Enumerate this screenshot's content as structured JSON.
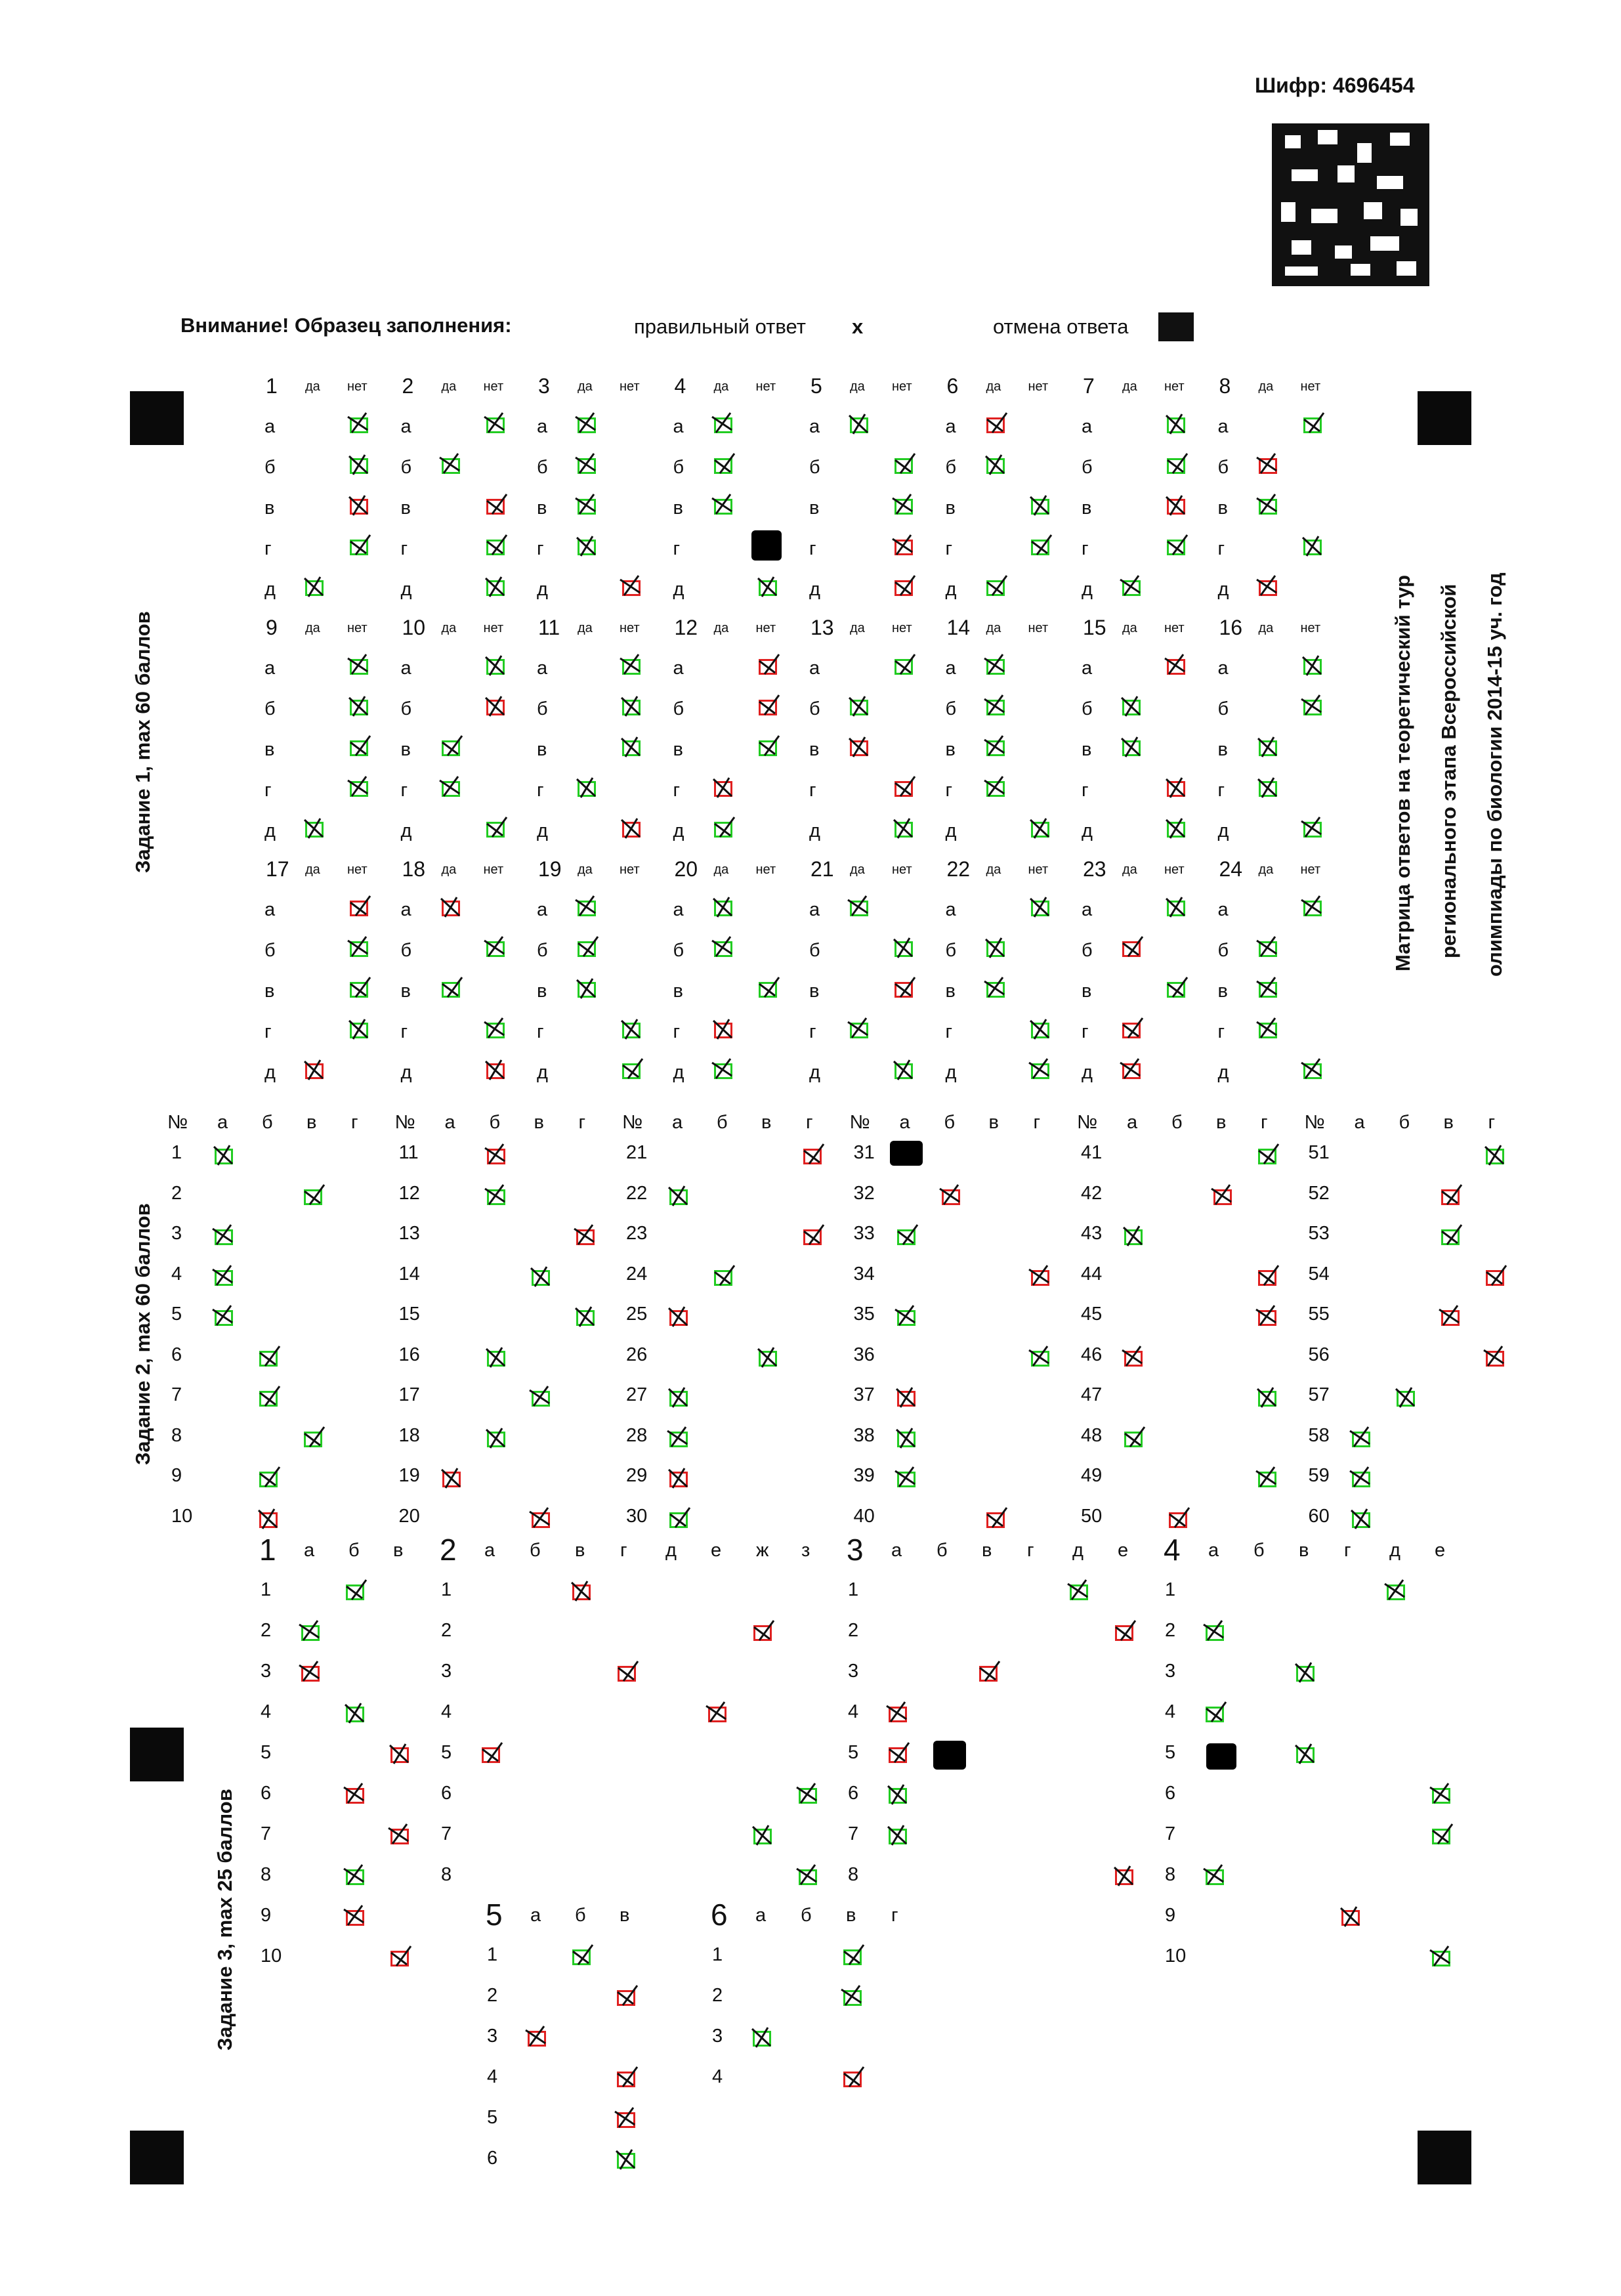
{
  "header": {
    "code": "Шифр: 4696454",
    "legend_title": "Внимание! Образец заполнения:",
    "legend_correct": "правильный ответ",
    "legend_correct_mark": "x",
    "legend_cancel": "отмена ответа"
  },
  "side_title": {
    "line1": "Матрица ответов на теоретический тур",
    "line2": "регионального этапа Всероссийской",
    "line3": "олимпиады по биологии 2014-15 уч. год"
  },
  "task1": {
    "label": "Задание 1, max 60 баллов",
    "yes": "да",
    "no": "нет",
    "letters": [
      "а",
      "б",
      "в",
      "г",
      "д"
    ],
    "questions": [
      "1",
      "2",
      "3",
      "4",
      "5",
      "6",
      "7",
      "8",
      "9",
      "10",
      "11",
      "12",
      "13",
      "14",
      "15",
      "16",
      "17",
      "18",
      "19",
      "20",
      "21",
      "22",
      "23",
      "24"
    ]
  },
  "task2": {
    "label": "Задание 2, max 60 баллов",
    "num_header": "№",
    "letters": [
      "а",
      "б",
      "в",
      "г"
    ],
    "numbers": [
      "1",
      "2",
      "3",
      "4",
      "5",
      "6",
      "7",
      "8",
      "9",
      "10",
      "11",
      "12",
      "13",
      "14",
      "15",
      "16",
      "17",
      "18",
      "19",
      "20",
      "21",
      "22",
      "23",
      "24",
      "25",
      "26",
      "27",
      "28",
      "29",
      "30",
      "31",
      "32",
      "33",
      "34",
      "35",
      "36",
      "37",
      "38",
      "39",
      "40",
      "41",
      "42",
      "43",
      "44",
      "45",
      "46",
      "47",
      "48",
      "49",
      "50",
      "51",
      "52",
      "53",
      "54",
      "55",
      "56",
      "57",
      "58",
      "59",
      "60"
    ]
  },
  "task3": {
    "label": "Задание 3, max 25 баллов",
    "blocks": [
      {
        "num": "1",
        "letters": [
          "а",
          "б",
          "в"
        ],
        "rows": [
          "1",
          "2",
          "3",
          "4",
          "5",
          "6",
          "7",
          "8",
          "9",
          "10"
        ]
      },
      {
        "num": "2",
        "letters": [
          "а",
          "б",
          "в",
          "г",
          "д",
          "е",
          "ж",
          "з"
        ],
        "rows": [
          "1",
          "2",
          "3",
          "4",
          "5",
          "6",
          "7",
          "8"
        ]
      },
      {
        "num": "3",
        "letters": [
          "а",
          "б",
          "в",
          "г",
          "д",
          "е"
        ],
        "rows": [
          "1",
          "2",
          "3",
          "4",
          "5",
          "6",
          "7",
          "8"
        ]
      },
      {
        "num": "4",
        "letters": [
          "а",
          "б",
          "в",
          "г",
          "д",
          "е"
        ],
        "rows": [
          "1",
          "2",
          "3",
          "4",
          "5",
          "6",
          "7",
          "8",
          "9",
          "10"
        ]
      },
      {
        "num": "5",
        "letters": [
          "а",
          "б",
          "в"
        ],
        "rows": [
          "1",
          "2",
          "3",
          "4",
          "5",
          "6"
        ]
      },
      {
        "num": "6",
        "letters": [
          "а",
          "б",
          "в",
          "г"
        ],
        "rows": [
          "1",
          "2",
          "3",
          "4"
        ]
      }
    ]
  },
  "colors": {
    "correct": "#22cc22",
    "wrong": "#e02020",
    "ink": "#111111"
  }
}
